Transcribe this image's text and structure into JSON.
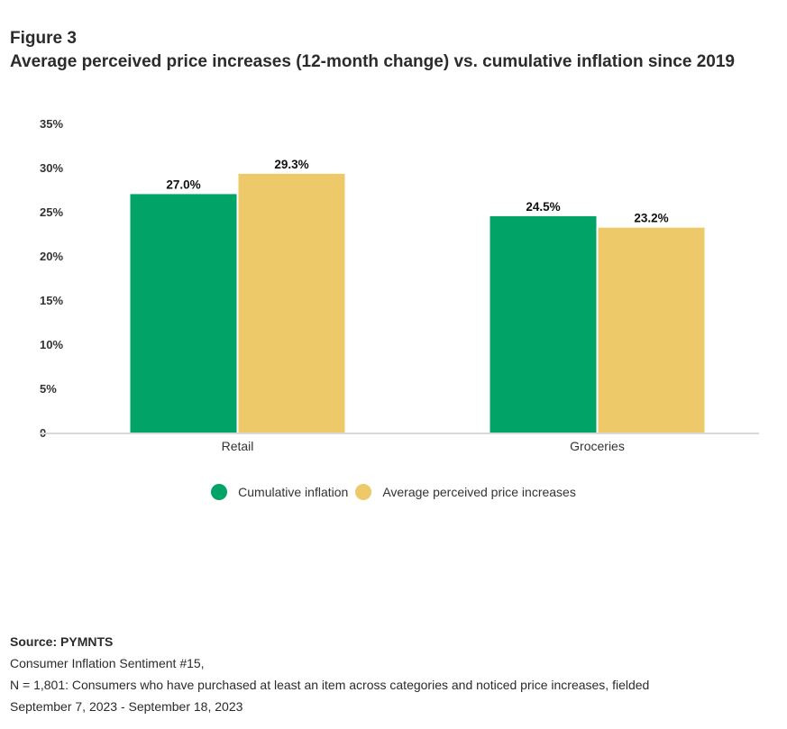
{
  "header": {
    "figure_label": "Figure 3",
    "title": "Average perceived price increases (12-month change) vs. cumulative inflation since 2019"
  },
  "chart_data": {
    "type": "bar",
    "title": "Average perceived price increases (12-month change) vs. cumulative inflation since 2019",
    "xlabel": "",
    "ylabel": "",
    "categories": [
      "Retail",
      "Groceries"
    ],
    "series": [
      {
        "name": "Cumulative inflation",
        "color": "#02A367",
        "values": [
          27.0,
          24.5
        ],
        "labels": [
          "27.0%",
          "24.5%"
        ]
      },
      {
        "name": "Average perceived price increases",
        "color": "#EDC96A",
        "values": [
          29.3,
          23.2
        ],
        "labels": [
          "29.3%",
          "23.2%"
        ]
      }
    ],
    "ylim": [
      0,
      35
    ],
    "yticks": [
      0,
      5,
      10,
      15,
      20,
      25,
      30,
      35
    ],
    "ytick_labels": [
      "0",
      "5%",
      "10%",
      "15%",
      "20%",
      "25%",
      "30%",
      "35%"
    ],
    "grid": false,
    "legend_position": "bottom"
  },
  "source": {
    "title": "Source: PYMNTS",
    "line1": "Consumer Inflation Sentiment #15,",
    "line2": "N = 1,801: Consumers who have purchased at least an item across categories and noticed price increases, fielded",
    "line3": "September 7, 2023 - September 18, 2023"
  }
}
